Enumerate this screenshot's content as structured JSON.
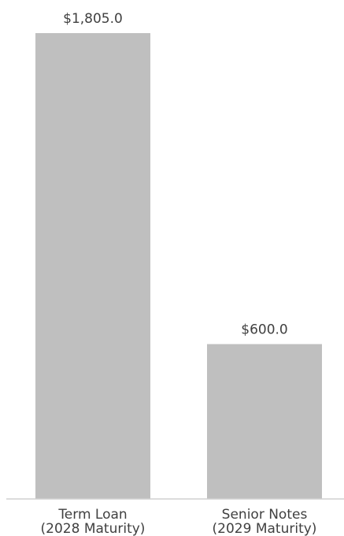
{
  "chart_data": {
    "type": "bar",
    "categories": [
      [
        "Term Loan",
        "(2028 Maturity)"
      ],
      [
        "Senior Notes",
        "(2029 Maturity)"
      ]
    ],
    "values": [
      1805.0,
      600.0
    ],
    "value_labels": [
      "$1,805.0",
      "$600.0"
    ],
    "title": "",
    "xlabel": "",
    "ylabel": "",
    "ylim": [
      0,
      1805.0
    ],
    "grid": false,
    "legend": "none",
    "bar_color": "#bfbfbf",
    "text_color": "#404040",
    "axis_color": "#d0d0d0"
  }
}
